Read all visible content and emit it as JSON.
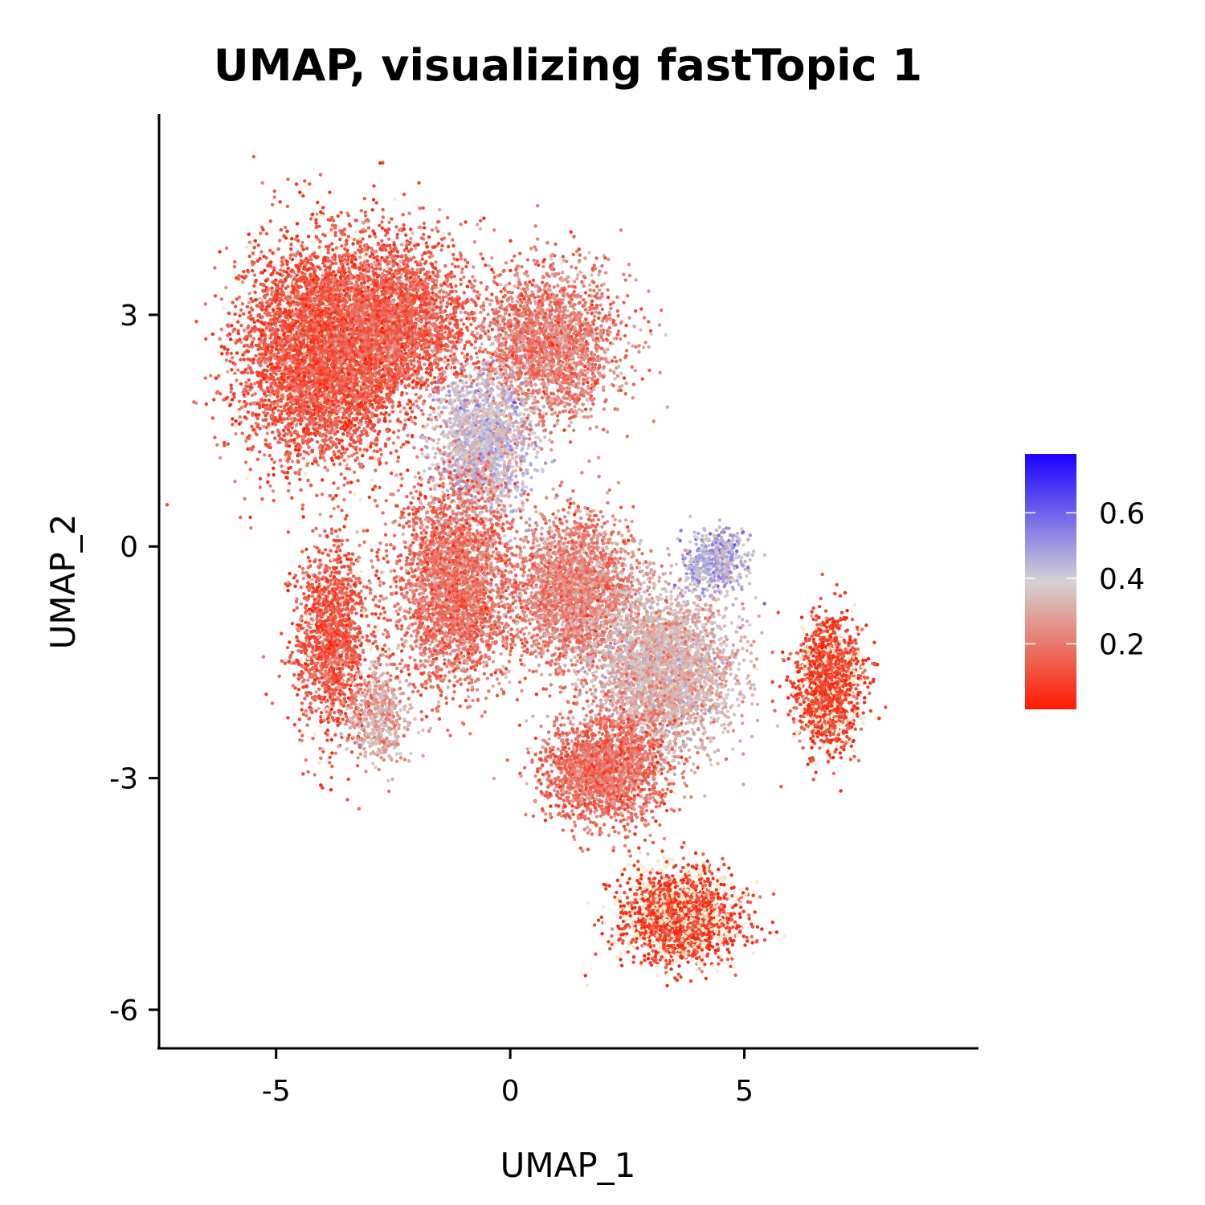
{
  "chart_data": {
    "type": "scatter",
    "title": "UMAP, visualizing fastTopic 1",
    "xlabel": "UMAP_1",
    "ylabel": "UMAP_2",
    "xlim": [
      -7.5,
      10
    ],
    "ylim": [
      -6.5,
      5.6
    ],
    "xticks": [
      -5,
      0,
      5
    ],
    "xtick_labels": [
      "-5",
      "0",
      "5"
    ],
    "yticks": [
      -6,
      -3,
      0,
      3
    ],
    "ytick_labels": [
      "-6",
      "-3",
      "0",
      "3"
    ],
    "grid": false,
    "legend": {
      "placement": "right",
      "min": 0,
      "max": 0.78,
      "ticks": [
        0.2,
        0.4,
        0.6
      ],
      "tick_labels": [
        "0.2",
        "0.4",
        "0.6"
      ],
      "colors": {
        "low": "#ff1a00",
        "mid": "#d3d3d3",
        "high": "#1a00ff"
      }
    },
    "point_color_zero": "#fde8c8",
    "clusters": [
      {
        "x": -4.0,
        "y": 2.5,
        "sx": 1.7,
        "sy": 1.4,
        "n": 5200,
        "value_mean": 0.12
      },
      {
        "x": -2.4,
        "y": 2.9,
        "sx": 1.6,
        "sy": 1.1,
        "n": 2500,
        "value_mean": 0.14
      },
      {
        "x": 0.8,
        "y": 2.6,
        "sx": 1.5,
        "sy": 1.0,
        "n": 2200,
        "value_mean": 0.2
      },
      {
        "x": -0.6,
        "y": 1.3,
        "sx": 1.0,
        "sy": 0.9,
        "n": 1600,
        "value_mean": 0.4
      },
      {
        "x": -3.8,
        "y": -1.2,
        "sx": 0.8,
        "sy": 1.2,
        "n": 1500,
        "value_mean": 0.12
      },
      {
        "x": -2.8,
        "y": -2.2,
        "sx": 0.6,
        "sy": 0.6,
        "n": 500,
        "value_mean": 0.3
      },
      {
        "x": -1.2,
        "y": -0.5,
        "sx": 1.3,
        "sy": 1.3,
        "n": 2800,
        "value_mean": 0.18
      },
      {
        "x": 1.4,
        "y": -0.6,
        "sx": 1.3,
        "sy": 1.0,
        "n": 2400,
        "value_mean": 0.22
      },
      {
        "x": 3.3,
        "y": -1.6,
        "sx": 1.5,
        "sy": 1.0,
        "n": 3000,
        "value_mean": 0.32
      },
      {
        "x": 4.4,
        "y": -0.2,
        "sx": 0.7,
        "sy": 0.4,
        "n": 500,
        "value_mean": 0.45
      },
      {
        "x": 2.0,
        "y": -2.9,
        "sx": 1.3,
        "sy": 0.7,
        "n": 2000,
        "value_mean": 0.18
      },
      {
        "x": 6.8,
        "y": -1.8,
        "sx": 0.7,
        "sy": 0.8,
        "n": 1500,
        "value_mean": 0.06
      },
      {
        "x": 3.6,
        "y": -4.8,
        "sx": 1.2,
        "sy": 0.6,
        "n": 2000,
        "value_mean": 0.04
      }
    ]
  }
}
